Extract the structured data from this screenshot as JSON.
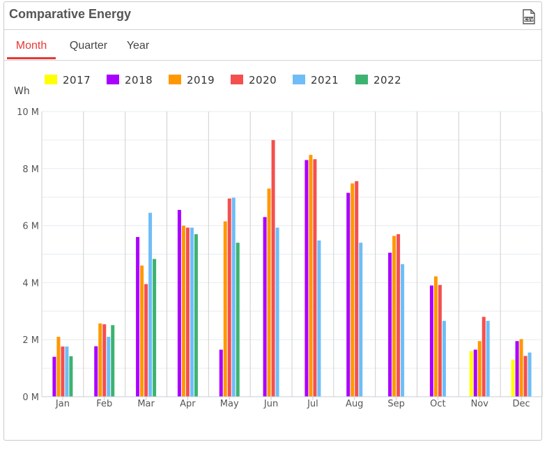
{
  "title": "Comparative Energy",
  "export": {
    "label": "CSV",
    "icon": "csv-file-icon"
  },
  "tabs": [
    {
      "label": "Month",
      "active": true
    },
    {
      "label": "Quarter",
      "active": false
    },
    {
      "label": "Year",
      "active": false
    }
  ],
  "chart_data": {
    "type": "bar",
    "ylabel": "Wh",
    "ylim": [
      0,
      10000000
    ],
    "yticks": [
      0,
      2000000,
      4000000,
      6000000,
      8000000,
      10000000
    ],
    "ytick_labels": [
      "0 M",
      "2 M",
      "4 M",
      "6 M",
      "8 M",
      "10 M"
    ],
    "categories": [
      "Jan",
      "Feb",
      "Mar",
      "Apr",
      "May",
      "Jun",
      "Jul",
      "Aug",
      "Sep",
      "Oct",
      "Nov",
      "Dec"
    ],
    "legend_position": "top",
    "grid": true,
    "series": [
      {
        "name": "2017",
        "color": "#ffff00",
        "values": [
          null,
          null,
          null,
          null,
          null,
          null,
          null,
          null,
          null,
          null,
          1600000,
          1300000
        ]
      },
      {
        "name": "2018",
        "color": "#aa00ff",
        "values": [
          1400000,
          1770000,
          5600000,
          6550000,
          1650000,
          6300000,
          8300000,
          7150000,
          5050000,
          3900000,
          1650000,
          1950000
        ]
      },
      {
        "name": "2019",
        "color": "#ff9800",
        "values": [
          2100000,
          2570000,
          4600000,
          6000000,
          6150000,
          7300000,
          8480000,
          7480000,
          5640000,
          4220000,
          1950000,
          2020000
        ]
      },
      {
        "name": "2020",
        "color": "#f44f4f",
        "values": [
          1760000,
          2540000,
          3950000,
          5930000,
          6950000,
          9000000,
          8330000,
          7560000,
          5700000,
          3920000,
          2800000,
          1430000
        ]
      },
      {
        "name": "2021",
        "color": "#6ebdf7",
        "values": [
          1760000,
          2100000,
          6450000,
          5930000,
          6980000,
          5930000,
          5480000,
          5400000,
          4650000,
          2660000,
          2660000,
          1550000
        ]
      },
      {
        "name": "2022",
        "color": "#3cb371",
        "values": [
          1420000,
          2510000,
          4830000,
          5700000,
          5400000,
          null,
          null,
          null,
          null,
          null,
          null,
          null
        ]
      }
    ]
  }
}
